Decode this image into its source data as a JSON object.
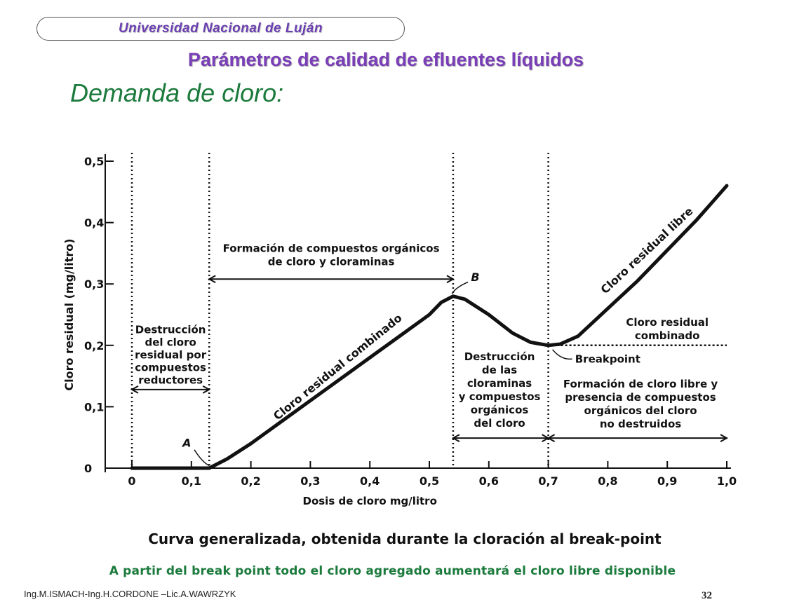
{
  "header": {
    "university": "Universidad Nacional de Luján"
  },
  "slide": {
    "title": "Parámetros de calidad de efluentes líquidos",
    "subtitle": "Demanda de cloro:"
  },
  "chart_data": {
    "type": "line",
    "title": "Curva generalizada, obtenida durante la cloración al break-point",
    "xlabel": "Dosis de cloro mg/litro",
    "ylabel": "Cloro residual (mg/litro)",
    "xlim": [
      0,
      1.0
    ],
    "ylim": [
      0,
      0.5
    ],
    "x_ticks": [
      "0",
      "0,1",
      "0,2",
      "0,3",
      "0,4",
      "0,5",
      "0,6",
      "0,7",
      "0,8",
      "0,9",
      "1,0"
    ],
    "y_ticks": [
      "0",
      "0,1",
      "0,2",
      "0,3",
      "0,4",
      "0,5"
    ],
    "series": [
      {
        "x": [
          0.0,
          0.05,
          0.1,
          0.13,
          0.16,
          0.2,
          0.25,
          0.3,
          0.35,
          0.4,
          0.45,
          0.5,
          0.52,
          0.54,
          0.56,
          0.6,
          0.64,
          0.67,
          0.7,
          0.72,
          0.75,
          0.8,
          0.85,
          0.9,
          0.95,
          1.0
        ],
        "y": [
          0.0,
          0.0,
          0.0,
          0.0,
          0.015,
          0.04,
          0.075,
          0.11,
          0.145,
          0.18,
          0.215,
          0.25,
          0.27,
          0.28,
          0.275,
          0.25,
          0.22,
          0.205,
          0.2,
          0.202,
          0.215,
          0.26,
          0.305,
          0.355,
          0.405,
          0.46
        ]
      }
    ],
    "reference_line": {
      "y": 0.2,
      "x_range": [
        0.7,
        1.0
      ]
    },
    "divider_lines_x": [
      0.0,
      0.13,
      0.54,
      0.7
    ],
    "point_labels": [
      "A",
      "B"
    ],
    "annotations": {
      "zone1": [
        "Destrucción",
        "del cloro",
        "residual por",
        "compuestos",
        "reductores"
      ],
      "zone2": [
        "Formación de compuestos orgánicos",
        "de cloro y cloraminas"
      ],
      "zone3": [
        "Destrucción",
        "de las",
        "cloraminas",
        "y compuestos",
        "orgánicos",
        "del cloro"
      ],
      "zone4": [
        "Formación de cloro libre y",
        "presencia de compuestos",
        "orgánicos del cloro",
        "no destruidos"
      ],
      "curve_combined": "Cloro residual combinado",
      "curve_free": "Cloro residual libre",
      "combined_line": [
        "Cloro residual",
        "combinado"
      ],
      "breakpoint": "Breakpoint"
    },
    "grid": false
  },
  "footer": {
    "caption": "A partir del break point todo el cloro agregado aumentará el cloro libre disponible",
    "authors": "Ing.M.ISMACH-Ing.H.CORDONE –Lic.A.WAWRZYK",
    "page": "32"
  }
}
